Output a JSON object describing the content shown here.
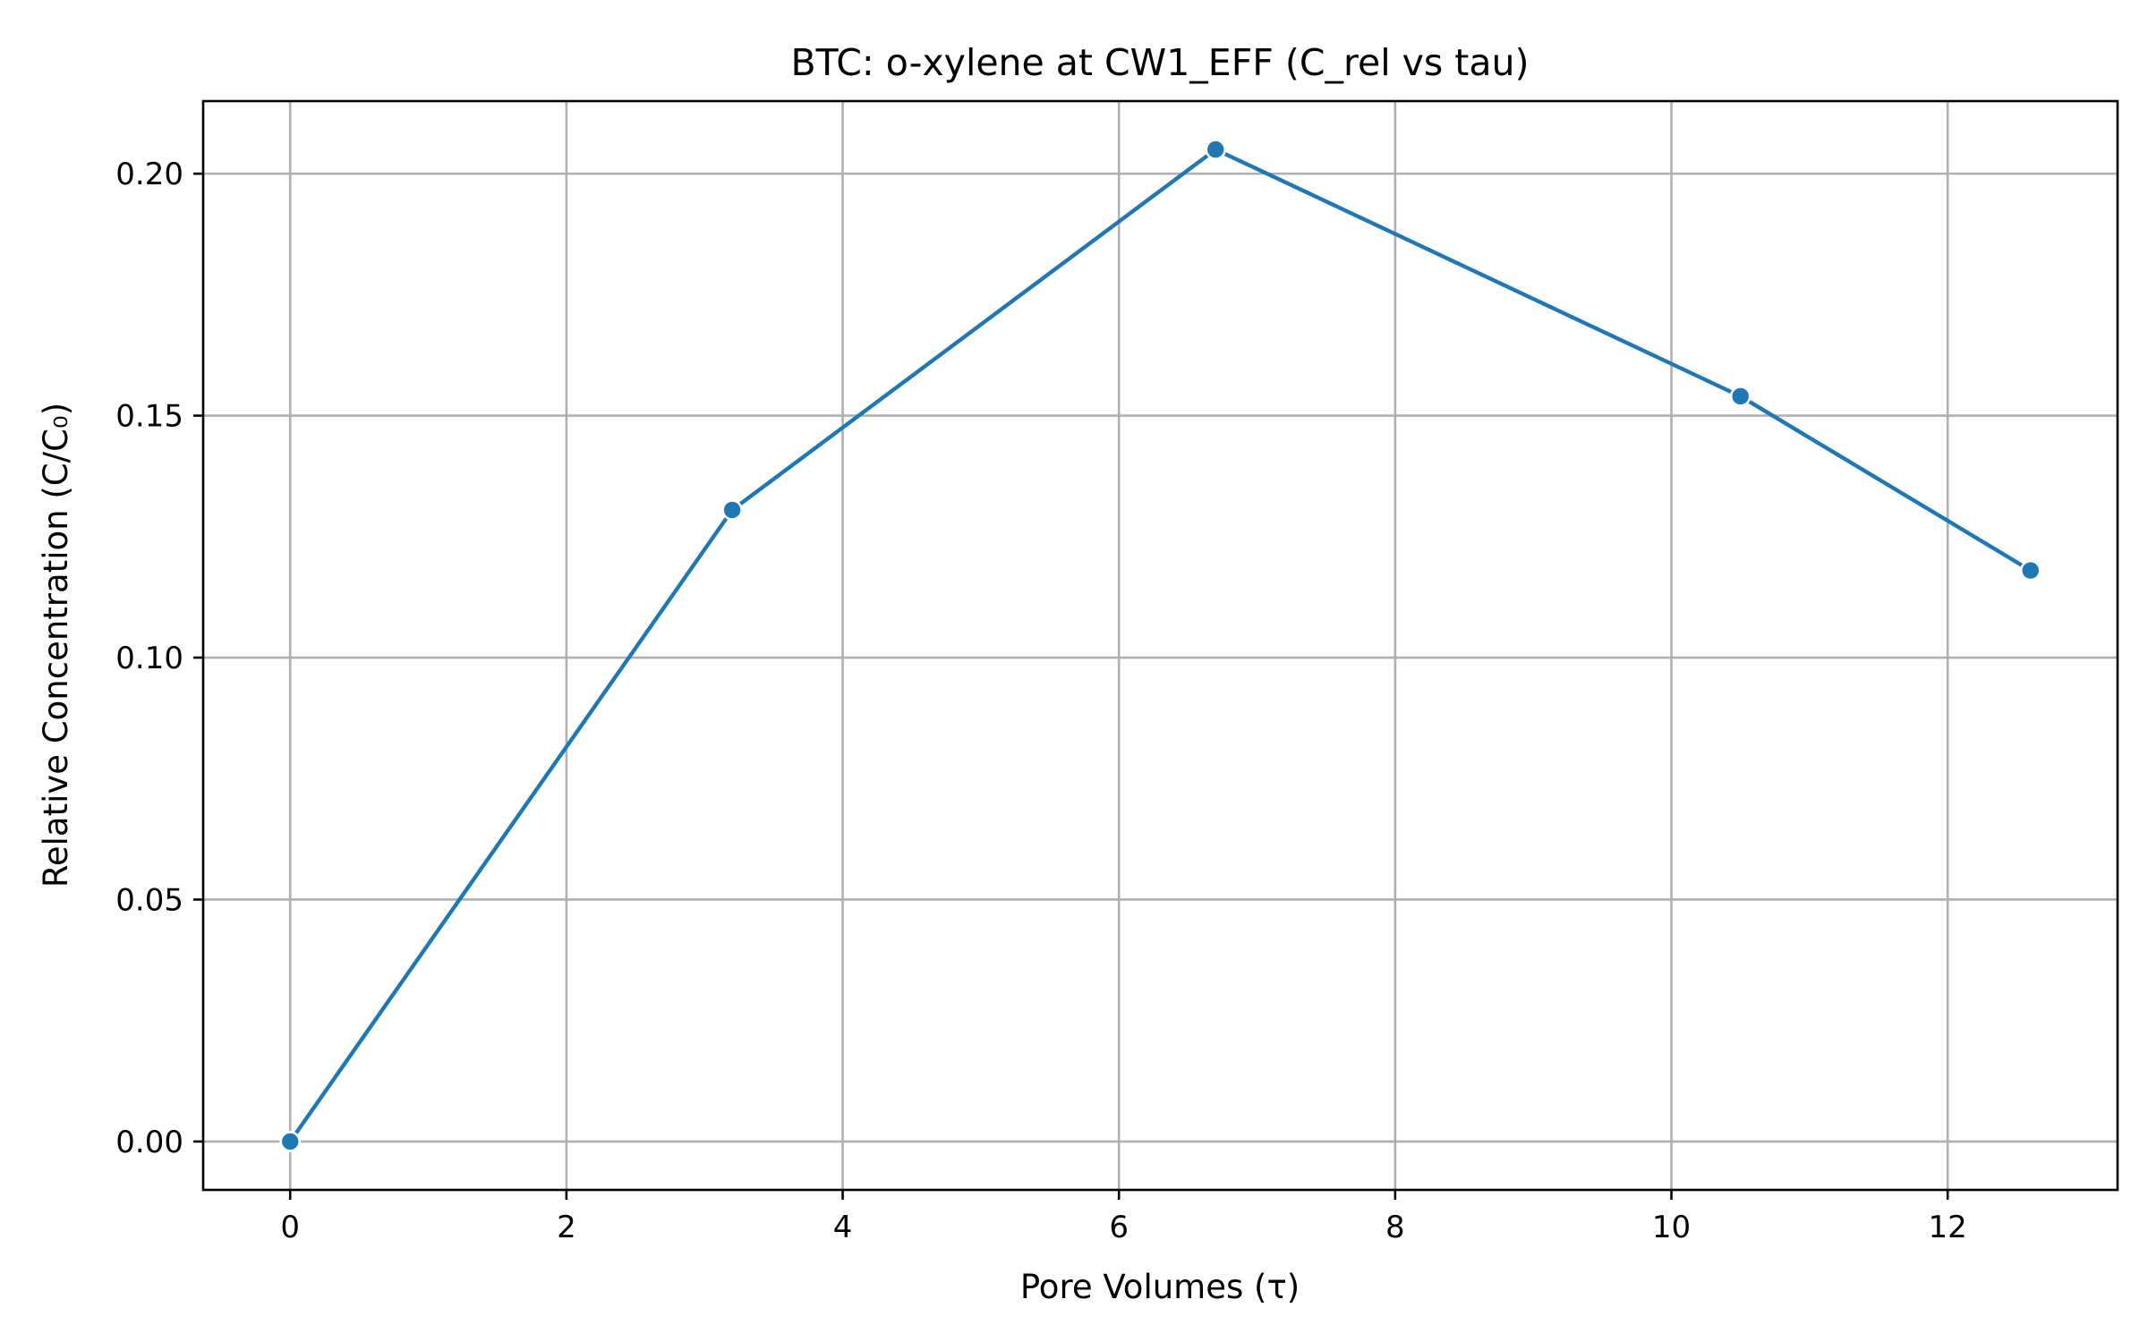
{
  "chart_data": {
    "type": "line",
    "title": "BTC: o-xylene at CW1_EFF (C_rel vs tau)",
    "xlabel": "Pore Volumes (τ)",
    "ylabel": "Relative Concentration (C/C₀)",
    "xlim": [
      -0.63,
      13.23
    ],
    "ylim": [
      -0.01,
      0.215
    ],
    "x_ticks": [
      0,
      2,
      4,
      6,
      8,
      10,
      12
    ],
    "x_tick_labels": [
      "0",
      "2",
      "4",
      "6",
      "8",
      "10",
      "12"
    ],
    "y_ticks": [
      0.0,
      0.05,
      0.1,
      0.15,
      0.2
    ],
    "y_tick_labels": [
      "0.00",
      "0.05",
      "0.10",
      "0.15",
      "0.20"
    ],
    "grid": true,
    "legend": "none",
    "series": [
      {
        "color": "#1f77b4",
        "marker": "circle",
        "x": [
          0.0,
          3.2,
          6.7,
          10.5,
          12.6
        ],
        "y": [
          0.0,
          0.1305,
          0.205,
          0.154,
          0.118
        ]
      }
    ]
  }
}
